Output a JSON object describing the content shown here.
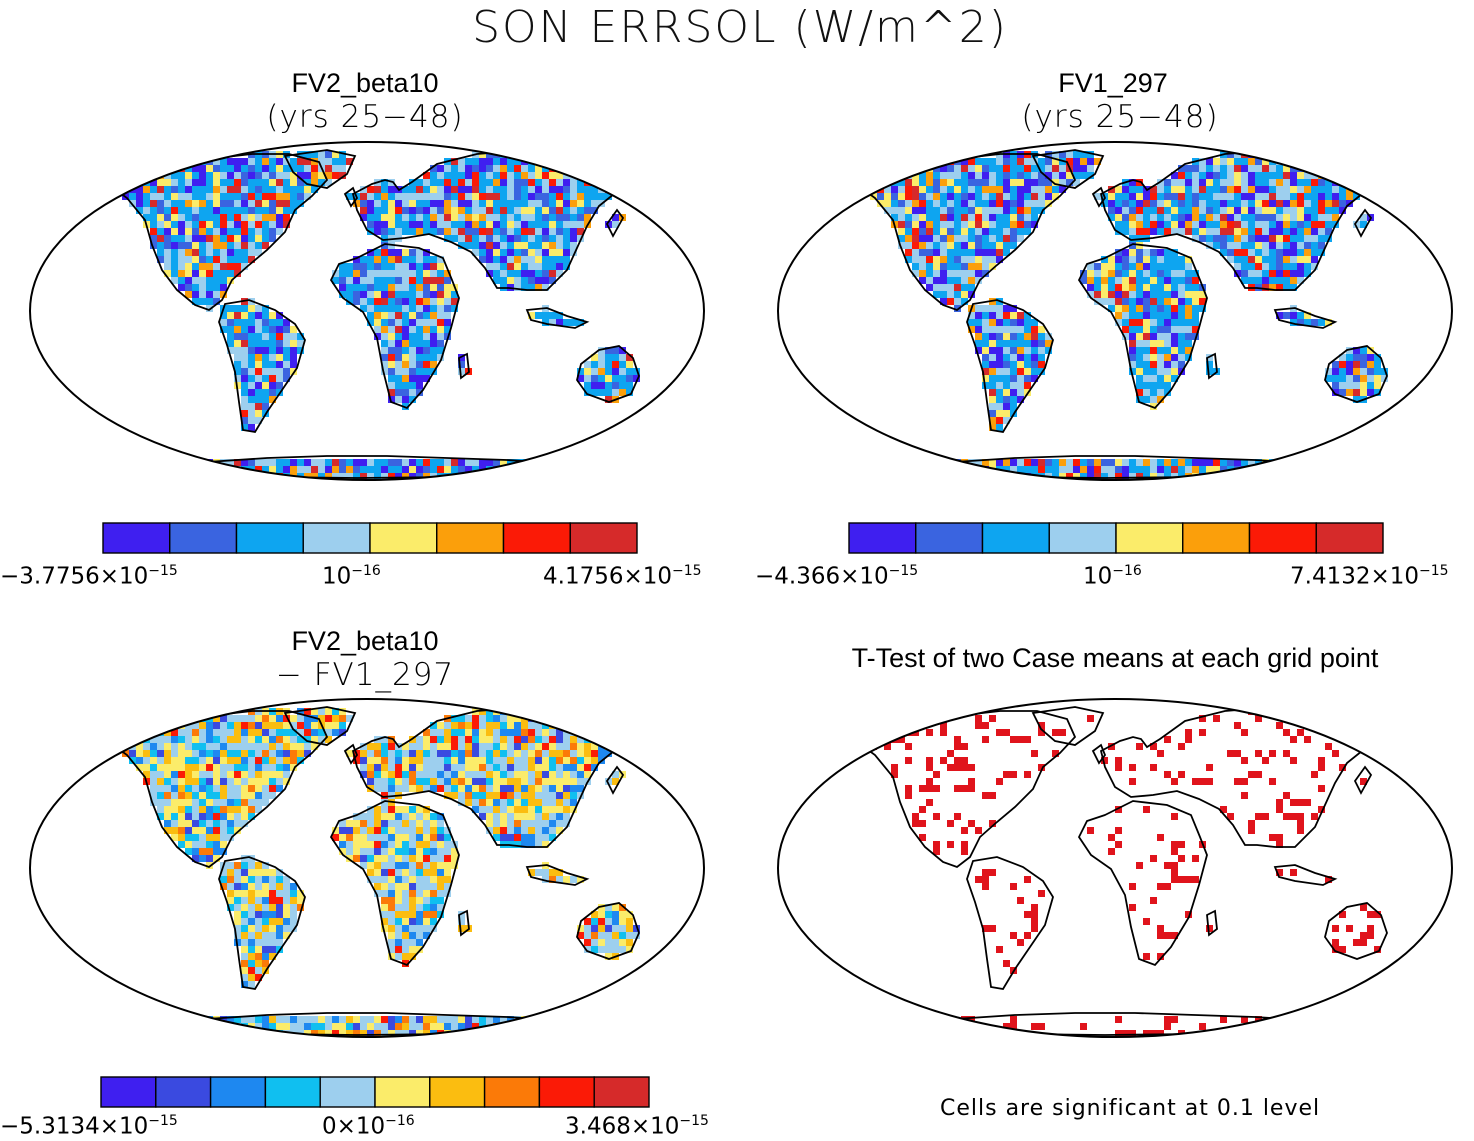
{
  "title": "SON ERRSOL (W/m^2)",
  "panels": [
    {
      "id": "tl",
      "title": "FV2_beta10",
      "subtitle": "(yrs 25−48)",
      "colorbar": {
        "colors": [
          "#3f1ff0",
          "#3a64e0",
          "#0ea5f0",
          "#9dcfee",
          "#fbec6a",
          "#fb9f0b",
          "#fb1a06",
          "#d62a2a"
        ],
        "labels": [
          {
            "mant": "−3.7756×10",
            "exp": "−15"
          },
          {
            "mant": "10",
            "exp": "−16"
          },
          {
            "mant": "4.1756×10",
            "exp": "−15"
          }
        ]
      }
    },
    {
      "id": "tr",
      "title": "FV1_297",
      "subtitle": "(yrs 25−48)",
      "colorbar": {
        "colors": [
          "#3f1ff0",
          "#3a64e0",
          "#0ea5f0",
          "#9dcfee",
          "#fbec6a",
          "#fb9f0b",
          "#fb1a06",
          "#d62a2a"
        ],
        "labels": [
          {
            "mant": "−4.366×10",
            "exp": "−15"
          },
          {
            "mant": "10",
            "exp": "−16"
          },
          {
            "mant": "7.4132×10",
            "exp": "−15"
          }
        ]
      }
    },
    {
      "id": "bl",
      "title": "FV2_beta10",
      "subtitle": "− FV1_297",
      "colorbar": {
        "colors": [
          "#3f1ff0",
          "#3a4ae0",
          "#1e88f0",
          "#10bff0",
          "#9dcfee",
          "#fbec6a",
          "#fbbd10",
          "#fb7a08",
          "#fb1a06",
          "#d62a2a"
        ],
        "labels": [
          {
            "mant": "−5.3134×10",
            "exp": "−15"
          },
          {
            "mant": "0×10",
            "exp": "−16"
          },
          {
            "mant": "3.468×10",
            "exp": "−15"
          }
        ]
      }
    },
    {
      "id": "br",
      "title": "T-Test of two Case means at each grid point",
      "footnote": "Cells are significant at 0.1 level",
      "significant_color": "#e0141c"
    }
  ],
  "map_palettes": {
    "tl": [
      "#0ea5f0",
      "#9dcfee",
      "#3f1ff0",
      "#3a64e0",
      "#fbec6a",
      "#fb9f0b",
      "#fb1a06",
      "#d62a2a"
    ],
    "tr": [
      "#0ea5f0",
      "#9dcfee",
      "#3f1ff0",
      "#3a64e0",
      "#fbec6a",
      "#fb9f0b",
      "#fb1a06",
      "#d62a2a"
    ],
    "bl": [
      "#9dcfee",
      "#fbec6a",
      "#fbbd10",
      "#10bff0",
      "#1e88f0",
      "#fb7a08",
      "#3a4ae0",
      "#fb1a06"
    ]
  }
}
